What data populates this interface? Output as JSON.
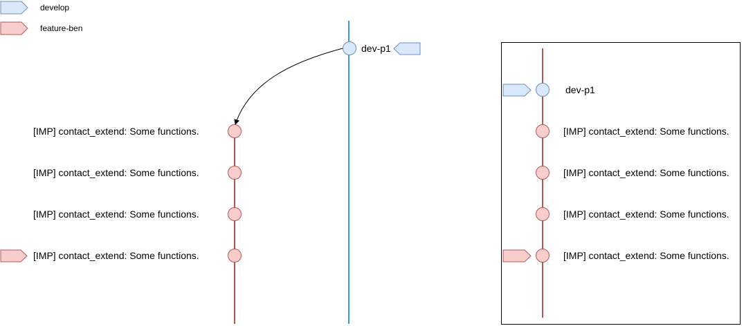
{
  "legend": [
    {
      "label": "develop",
      "fill": "#dae8fc",
      "stroke": "#6c8ebf"
    },
    {
      "label": "feature-ben",
      "fill": "#f8cecc",
      "stroke": "#b85450"
    }
  ],
  "colors": {
    "develop_line": "#3b9ce0",
    "feature_line": "#b85450",
    "develop_fill": "#dae8fc",
    "develop_stroke": "#6c8ebf",
    "feature_fill": "#f8cecc",
    "feature_stroke": "#b85450"
  },
  "before": {
    "develop_commit": "dev-p1",
    "feature_commits": [
      "[IMP] contact_extend: Some functions.",
      "[IMP] contact_extend: Some functions.",
      "[IMP] contact_extend: Some functions.",
      "[IMP] contact_extend: Some functions."
    ]
  },
  "after": {
    "base_commit": "dev-p1",
    "feature_commits": [
      "[IMP] contact_extend: Some functions.",
      "[IMP] contact_extend: Some functions.",
      "[IMP] contact_extend: Some functions.",
      "[IMP] contact_extend: Some functions."
    ]
  }
}
